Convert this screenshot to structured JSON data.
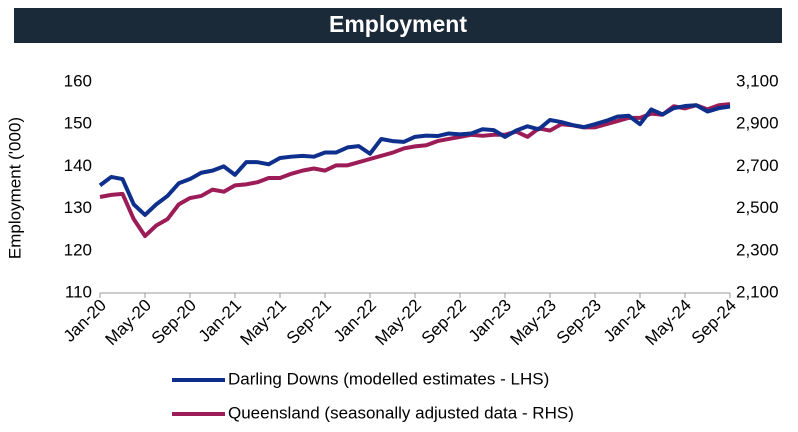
{
  "chart_data": {
    "type": "line",
    "title": "Employment",
    "ylabel": "Employment ('000)",
    "categories": [
      "Jan-20",
      null,
      null,
      null,
      "May-20",
      null,
      null,
      null,
      "Sep-20",
      null,
      null,
      null,
      "Jan-21",
      null,
      null,
      null,
      "May-21",
      null,
      null,
      null,
      "Sep-21",
      null,
      null,
      null,
      "Jan-22",
      null,
      null,
      null,
      "May-22",
      null,
      null,
      null,
      "Sep-22",
      null,
      null,
      null,
      "Jan-23",
      null,
      null,
      null,
      "May-23",
      null,
      null,
      null,
      "Sep-23",
      null,
      null,
      null,
      "Jan-24",
      null,
      null,
      null,
      "May-24",
      null,
      null,
      null,
      "Sep-24"
    ],
    "series": [
      {
        "name": "Darling Downs (modelled estimates - LHS)",
        "color": "#0e2f8c",
        "axis": "y",
        "values": [
          135.5,
          137.5,
          137,
          131,
          128.5,
          131,
          133,
          136,
          137,
          138.5,
          139,
          140,
          138,
          141,
          141,
          140.5,
          142,
          142.3,
          142.5,
          142.3,
          143.3,
          143.3,
          144.5,
          144.8,
          143,
          146.5,
          146,
          145.8,
          147,
          147.3,
          147.2,
          147.8,
          147.6,
          147.8,
          148.8,
          148.6,
          147,
          148.5,
          149.5,
          148.8,
          151,
          150.5,
          149.8,
          149.3,
          150,
          150.8,
          151.8,
          152,
          150,
          153.5,
          152.3,
          153.8,
          154.3,
          154.5,
          153,
          153.8,
          154.2
        ]
      },
      {
        "name": "Queensland (seasonally adjusted data - RHS)",
        "color": "#9c1c57",
        "axis": "y2",
        "values": [
          2555,
          2565,
          2570,
          2450,
          2370,
          2420,
          2450,
          2520,
          2550,
          2560,
          2590,
          2580,
          2610,
          2615,
          2625,
          2645,
          2645,
          2665,
          2680,
          2690,
          2680,
          2705,
          2705,
          2720,
          2735,
          2750,
          2765,
          2785,
          2795,
          2800,
          2820,
          2830,
          2840,
          2850,
          2845,
          2850,
          2850,
          2865,
          2840,
          2880,
          2870,
          2900,
          2895,
          2885,
          2885,
          2900,
          2915,
          2930,
          2930,
          2950,
          2945,
          2985,
          2975,
          2990,
          2970,
          2990,
          2995
        ]
      }
    ],
    "ylim": [
      110,
      160
    ],
    "yticks": [
      110,
      120,
      130,
      140,
      150,
      160
    ],
    "y2lim": [
      2100,
      3100
    ],
    "y2ticks": [
      {
        "value": 2100,
        "label": "2,100"
      },
      {
        "value": 2300,
        "label": "2,300"
      },
      {
        "value": 2500,
        "label": "2,500"
      },
      {
        "value": 2700,
        "label": "2,700"
      },
      {
        "value": 2900,
        "label": "2,900"
      },
      {
        "value": 3100,
        "label": "3,100"
      }
    ],
    "grid": false,
    "legend": "bottom"
  }
}
